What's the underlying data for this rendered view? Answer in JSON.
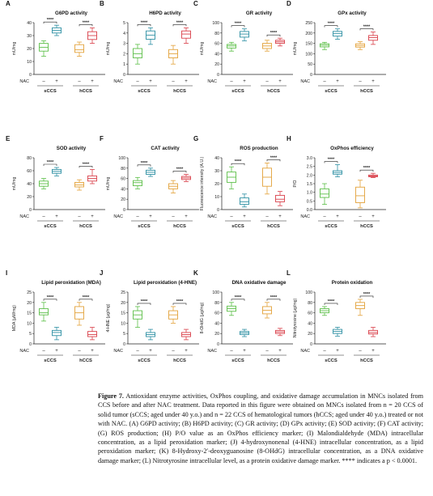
{
  "figure": {
    "nac_label": "NAC",
    "minus": "–",
    "plus": "+",
    "group_labels": [
      "sCCS",
      "hCCS"
    ],
    "sig_label": "****",
    "colors": {
      "scss_ctrl": "#5cbf48",
      "scss_nac": "#2d8fa3",
      "hccs_ctrl": "#e3a23a",
      "hccs_nac": "#d9404a"
    }
  },
  "chart_data": [
    {
      "type": "box",
      "panel": "A",
      "title": "G6PD activity",
      "ylabel": "mU/mg",
      "ylim": [
        0,
        40
      ],
      "yticks": [
        "0",
        "10",
        "20",
        "30",
        "40"
      ],
      "groups": [
        "sCCS",
        "hCCS"
      ],
      "series": [
        {
          "name": "sCCS NAC –",
          "min": 14,
          "q1": 18,
          "median": 21,
          "q3": 24,
          "max": 26
        },
        {
          "name": "sCCS NAC +",
          "min": 30,
          "q1": 32,
          "median": 34,
          "q3": 36,
          "max": 38
        },
        {
          "name": "hCCS NAC –",
          "min": 14,
          "q1": 17,
          "median": 19,
          "q3": 23,
          "max": 25
        },
        {
          "name": "hCCS NAC +",
          "min": 24,
          "q1": 27,
          "median": 30,
          "q3": 33,
          "max": 36
        }
      ]
    },
    {
      "type": "box",
      "panel": "B",
      "title": "H6PD activity",
      "ylabel": "mU/mg",
      "ylim": [
        0,
        5
      ],
      "yticks": [
        "0",
        "1",
        "2",
        "3",
        "4",
        "5"
      ],
      "groups": [
        "sCCS",
        "hCCS"
      ],
      "series": [
        {
          "name": "sCCS NAC –",
          "min": 1.0,
          "q1": 1.6,
          "median": 2.0,
          "q3": 2.5,
          "max": 2.9
        },
        {
          "name": "sCCS NAC +",
          "min": 2.9,
          "q1": 3.4,
          "median": 3.8,
          "q3": 4.2,
          "max": 4.5
        },
        {
          "name": "hCCS NAC –",
          "min": 1.0,
          "q1": 1.6,
          "median": 2.0,
          "q3": 2.4,
          "max": 2.8
        },
        {
          "name": "hCCS NAC +",
          "min": 3.0,
          "q1": 3.5,
          "median": 3.9,
          "q3": 4.2,
          "max": 4.5
        }
      ]
    },
    {
      "type": "box",
      "panel": "C",
      "title": "GR activity",
      "ylabel": "mU/mg",
      "ylim": [
        0,
        100
      ],
      "yticks": [
        "0",
        "20",
        "40",
        "60",
        "80",
        "100"
      ],
      "groups": [
        "sCCS",
        "hCCS"
      ],
      "series": [
        {
          "name": "sCCS NAC –",
          "min": 45,
          "q1": 51,
          "median": 55,
          "q3": 58,
          "max": 62
        },
        {
          "name": "sCCS NAC +",
          "min": 65,
          "q1": 72,
          "median": 78,
          "q3": 83,
          "max": 88
        },
        {
          "name": "hCCS NAC –",
          "min": 45,
          "q1": 50,
          "median": 55,
          "q3": 60,
          "max": 66
        },
        {
          "name": "hCCS NAC +",
          "min": 55,
          "q1": 60,
          "median": 63,
          "q3": 66,
          "max": 70
        }
      ]
    },
    {
      "type": "box",
      "panel": "D",
      "title": "GPx activity",
      "ylabel": "mU/mg",
      "ylim": [
        0,
        250
      ],
      "yticks": [
        "0",
        "50",
        "100",
        "150",
        "200",
        "250"
      ],
      "groups": [
        "sCCS",
        "hCCS"
      ],
      "series": [
        {
          "name": "sCCS NAC –",
          "min": 120,
          "q1": 133,
          "median": 141,
          "q3": 148,
          "max": 155
        },
        {
          "name": "sCCS NAC +",
          "min": 170,
          "q1": 185,
          "median": 198,
          "q3": 208,
          "max": 220
        },
        {
          "name": "hCCS NAC –",
          "min": 120,
          "q1": 132,
          "median": 140,
          "q3": 148,
          "max": 158
        },
        {
          "name": "hCCS NAC +",
          "min": 145,
          "q1": 165,
          "median": 178,
          "q3": 188,
          "max": 205
        }
      ]
    },
    {
      "type": "box",
      "panel": "E",
      "title": "SOD activity",
      "ylabel": "mU/mg",
      "ylim": [
        0,
        80
      ],
      "yticks": [
        "0",
        "20",
        "40",
        "60",
        "80"
      ],
      "groups": [
        "sCCS",
        "hCCS"
      ],
      "series": [
        {
          "name": "sCCS NAC –",
          "min": 32,
          "q1": 36,
          "median": 40,
          "q3": 44,
          "max": 48
        },
        {
          "name": "sCCS NAC +",
          "min": 52,
          "q1": 56,
          "median": 59,
          "q3": 62,
          "max": 65
        },
        {
          "name": "hCCS NAC –",
          "min": 30,
          "q1": 35,
          "median": 38,
          "q3": 42,
          "max": 46
        },
        {
          "name": "hCCS NAC +",
          "min": 40,
          "q1": 44,
          "median": 48,
          "q3": 52,
          "max": 62
        }
      ]
    },
    {
      "type": "box",
      "panel": "F",
      "title": "CAT activity",
      "ylabel": "mU/mg",
      "ylim": [
        0,
        100
      ],
      "yticks": [
        "0",
        "20",
        "40",
        "60",
        "80",
        "100"
      ],
      "groups": [
        "sCCS",
        "hCCS"
      ],
      "series": [
        {
          "name": "sCCS NAC –",
          "min": 40,
          "q1": 46,
          "median": 52,
          "q3": 56,
          "max": 62
        },
        {
          "name": "sCCS NAC +",
          "min": 64,
          "q1": 68,
          "median": 72,
          "q3": 76,
          "max": 80
        },
        {
          "name": "hCCS NAC –",
          "min": 32,
          "q1": 40,
          "median": 45,
          "q3": 50,
          "max": 56
        },
        {
          "name": "hCCS NAC +",
          "min": 54,
          "q1": 58,
          "median": 61,
          "q3": 64,
          "max": 68
        }
      ]
    },
    {
      "type": "box",
      "panel": "G",
      "title": "ROS production",
      "ylabel": "Fluorescence intensity (A.U.)",
      "ylim": [
        0,
        40
      ],
      "yticks": [
        "0",
        "10",
        "20",
        "30",
        "40"
      ],
      "groups": [
        "sCCS",
        "hCCS"
      ],
      "series": [
        {
          "name": "sCCS NAC –",
          "min": 16,
          "q1": 21,
          "median": 25,
          "q3": 29,
          "max": 33
        },
        {
          "name": "sCCS NAC +",
          "min": 2,
          "q1": 4,
          "median": 6,
          "q3": 9,
          "max": 12
        },
        {
          "name": "hCCS NAC –",
          "min": 12,
          "q1": 18,
          "median": 25,
          "q3": 32,
          "max": 36
        },
        {
          "name": "hCCS NAC +",
          "min": 3,
          "q1": 6,
          "median": 8,
          "q3": 11,
          "max": 14
        }
      ]
    },
    {
      "type": "box",
      "panel": "H",
      "title": "OxPhos efficiency",
      "ylabel": "P/O",
      "ylim": [
        0,
        3
      ],
      "yticks": [
        "0.0",
        "0.5",
        "1.0",
        "1.5",
        "2.0",
        "2.5",
        "3.0"
      ],
      "groups": [
        "sCCS",
        "hCCS"
      ],
      "series": [
        {
          "name": "sCCS NAC –",
          "min": 0.3,
          "q1": 0.7,
          "median": 0.9,
          "q3": 1.2,
          "max": 1.5
        },
        {
          "name": "sCCS NAC +",
          "min": 1.9,
          "q1": 2.05,
          "median": 2.15,
          "q3": 2.25,
          "max": 2.6
        },
        {
          "name": "hCCS NAC –",
          "min": 0.1,
          "q1": 0.4,
          "median": 0.8,
          "q3": 1.3,
          "max": 1.7
        },
        {
          "name": "hCCS NAC +",
          "min": 1.85,
          "q1": 1.9,
          "median": 1.95,
          "q3": 2.0,
          "max": 2.1
        }
      ]
    },
    {
      "type": "box",
      "panel": "I",
      "title": "Lipid peroxidation (MDA)",
      "ylabel": "MDA (μM/mg)",
      "ylim": [
        0,
        25
      ],
      "yticks": [
        "0",
        "5",
        "10",
        "15",
        "20",
        "25"
      ],
      "groups": [
        "sCCS",
        "hCCS"
      ],
      "series": [
        {
          "name": "sCCS NAC –",
          "min": 11,
          "q1": 14,
          "median": 15,
          "q3": 17,
          "max": 20
        },
        {
          "name": "sCCS NAC +",
          "min": 2,
          "q1": 4,
          "median": 5.5,
          "q3": 6.5,
          "max": 8
        },
        {
          "name": "hCCS NAC –",
          "min": 9,
          "q1": 12,
          "median": 15,
          "q3": 18,
          "max": 20
        },
        {
          "name": "hCCS NAC +",
          "min": 2,
          "q1": 3.5,
          "median": 4.5,
          "q3": 6,
          "max": 8
        }
      ]
    },
    {
      "type": "box",
      "panel": "J",
      "title": "Lipid peroxidation (4-HNE)",
      "ylabel": "4-HNE (μg/mg)",
      "ylim": [
        0,
        25
      ],
      "yticks": [
        "0",
        "5",
        "10",
        "15",
        "20",
        "25"
      ],
      "groups": [
        "sCCS",
        "hCCS"
      ],
      "series": [
        {
          "name": "sCCS NAC –",
          "min": 8,
          "q1": 12,
          "median": 14,
          "q3": 16,
          "max": 18
        },
        {
          "name": "sCCS NAC +",
          "min": 2,
          "q1": 3.5,
          "median": 4.5,
          "q3": 5.5,
          "max": 7
        },
        {
          "name": "hCCS NAC –",
          "min": 10,
          "q1": 12,
          "median": 14,
          "q3": 16,
          "max": 18
        },
        {
          "name": "hCCS NAC +",
          "min": 2,
          "q1": 3.5,
          "median": 4.5,
          "q3": 5.5,
          "max": 7
        }
      ]
    },
    {
      "type": "box",
      "panel": "K",
      "title": "DNA oxidative damage",
      "ylabel": "8-OHdG (μg/mg)",
      "ylim": [
        0,
        100
      ],
      "yticks": [
        "0",
        "20",
        "40",
        "60",
        "80",
        "100"
      ],
      "groups": [
        "sCCS",
        "hCCS"
      ],
      "series": [
        {
          "name": "sCCS NAC –",
          "min": 55,
          "q1": 63,
          "median": 68,
          "q3": 73,
          "max": 80
        },
        {
          "name": "sCCS NAC +",
          "min": 14,
          "q1": 18,
          "median": 21,
          "q3": 24,
          "max": 28
        },
        {
          "name": "hCCS NAC –",
          "min": 50,
          "q1": 58,
          "median": 65,
          "q3": 72,
          "max": 80
        },
        {
          "name": "hCCS NAC +",
          "min": 16,
          "q1": 20,
          "median": 23,
          "q3": 26,
          "max": 30
        }
      ]
    },
    {
      "type": "box",
      "panel": "L",
      "title": "Protein oxidation",
      "ylabel": "Nitrotyrosine (μg/mg)",
      "ylim": [
        0,
        100
      ],
      "yticks": [
        "0",
        "20",
        "40",
        "60",
        "80",
        "100"
      ],
      "groups": [
        "sCCS",
        "hCCS"
      ],
      "series": [
        {
          "name": "sCCS NAC –",
          "min": 55,
          "q1": 60,
          "median": 64,
          "q3": 68,
          "max": 72
        },
        {
          "name": "sCCS NAC +",
          "min": 15,
          "q1": 20,
          "median": 24,
          "q3": 28,
          "max": 32
        },
        {
          "name": "hCCS NAC –",
          "min": 55,
          "q1": 68,
          "median": 74,
          "q3": 80,
          "max": 86
        },
        {
          "name": "hCCS NAC +",
          "min": 14,
          "q1": 19,
          "median": 22,
          "q3": 26,
          "max": 32
        }
      ]
    }
  ],
  "caption": {
    "label": "Figure 7.",
    "text": "Antioxidant enzyme activities, OxPhos coupling, and oxidative damage accumulation in MNCs isolated from CCS before and after NAC treatment. Data reported in this figure were obtained on MNCs isolated from n = 20 CCS of solid tumor (sCCS; aged under 40 y.o.) and n = 22 CCS of hematological tumors (hCCS; aged under 40 y.o.) treated or not with NAC. (A) G6PD activity; (B) H6PD activity; (C) GR activity; (D) GPx activity; (E) SOD activity; (F) CAT activity; (G) ROS production; (H) P/O value as an OxPhos efficiency marker; (I) Malondialdehyde (MDA) intracellular concentration, as a lipid peroxidation marker; (J) 4-hydroxynonenal (4-HNE) intracellular concentration, as a lipid peroxidation marker; (K) 8-Hydroxy-2′-deoxyguanosine (8-OHdG) intracellular concentration, as a DNA oxidative damage marker; (L) Nitrotyrosine intracellular level, as a protein oxidative damage marker. **** indicates a p < 0.0001."
  }
}
